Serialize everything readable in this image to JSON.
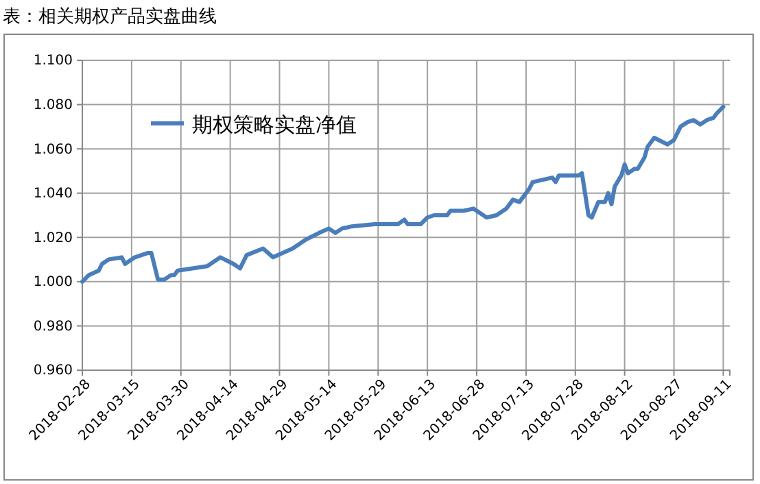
{
  "chart_data": {
    "type": "line",
    "title": "表：相关期权产品实盘曲线",
    "x": [
      "2018-02-28",
      "2018-03-02",
      "2018-03-05",
      "2018-03-06",
      "2018-03-08",
      "2018-03-12",
      "2018-03-13",
      "2018-03-16",
      "2018-03-20",
      "2018-03-21",
      "2018-03-23",
      "2018-03-25",
      "2018-03-27",
      "2018-03-28",
      "2018-03-29",
      "2018-04-07",
      "2018-04-11",
      "2018-04-15",
      "2018-04-17",
      "2018-04-19",
      "2018-04-24",
      "2018-04-27",
      "2018-05-03",
      "2018-05-07",
      "2018-05-11",
      "2018-05-14",
      "2018-05-16",
      "2018-05-18",
      "2018-05-21",
      "2018-05-28",
      "2018-06-04",
      "2018-06-06",
      "2018-06-07",
      "2018-06-11",
      "2018-06-13",
      "2018-06-15",
      "2018-06-19",
      "2018-06-20",
      "2018-06-24",
      "2018-06-27",
      "2018-06-29",
      "2018-07-01",
      "2018-07-04",
      "2018-07-07",
      "2018-07-09",
      "2018-07-11",
      "2018-07-14",
      "2018-07-15",
      "2018-07-21",
      "2018-07-22",
      "2018-07-23",
      "2018-07-29",
      "2018-07-30",
      "2018-08-01",
      "2018-08-02",
      "2018-08-04",
      "2018-08-06",
      "2018-08-07",
      "2018-08-08",
      "2018-08-09",
      "2018-08-11",
      "2018-08-12",
      "2018-08-13",
      "2018-08-15",
      "2018-08-16",
      "2018-08-18",
      "2018-08-19",
      "2018-08-21",
      "2018-08-25",
      "2018-08-27",
      "2018-08-29",
      "2018-08-31",
      "2018-09-02",
      "2018-09-04",
      "2018-09-06",
      "2018-09-08",
      "2018-09-09",
      "2018-09-11"
    ],
    "series": [
      {
        "name": "期权策略实盘净值",
        "color": "#4a7ebb",
        "values": [
          1.0,
          1.003,
          1.005,
          1.008,
          1.01,
          1.011,
          1.008,
          1.011,
          1.013,
          1.013,
          1.001,
          1.001,
          1.003,
          1.003,
          1.005,
          1.007,
          1.011,
          1.008,
          1.006,
          1.012,
          1.015,
          1.011,
          1.015,
          1.019,
          1.022,
          1.024,
          1.022,
          1.024,
          1.025,
          1.026,
          1.026,
          1.028,
          1.026,
          1.026,
          1.029,
          1.03,
          1.03,
          1.032,
          1.032,
          1.033,
          1.031,
          1.029,
          1.03,
          1.033,
          1.037,
          1.036,
          1.042,
          1.045,
          1.047,
          1.045,
          1.048,
          1.048,
          1.049,
          1.03,
          1.029,
          1.036,
          1.036,
          1.04,
          1.035,
          1.043,
          1.048,
          1.053,
          1.049,
          1.051,
          1.051,
          1.056,
          1.061,
          1.065,
          1.062,
          1.064,
          1.07,
          1.072,
          1.073,
          1.071,
          1.073,
          1.074,
          1.076,
          1.079
        ]
      }
    ],
    "xlim": [
      "2018-02-28",
      "2018-09-13"
    ],
    "xticks": [
      "2018-02-28",
      "2018-03-15",
      "2018-03-30",
      "2018-04-14",
      "2018-04-29",
      "2018-05-14",
      "2018-05-29",
      "2018-06-13",
      "2018-06-28",
      "2018-07-13",
      "2018-07-28",
      "2018-08-12",
      "2018-08-27",
      "2018-09-11"
    ],
    "ylim": [
      0.96,
      1.1
    ],
    "yticks": [
      {
        "value": 0.96,
        "label": "0.960"
      },
      {
        "value": 0.98,
        "label": "0.980"
      },
      {
        "value": 1.0,
        "label": "1.000"
      },
      {
        "value": 1.02,
        "label": "1.020"
      },
      {
        "value": 1.04,
        "label": "1.040"
      },
      {
        "value": 1.06,
        "label": "1.060"
      },
      {
        "value": 1.08,
        "label": "1.080"
      },
      {
        "value": 1.1,
        "label": "1.100"
      }
    ],
    "grid": true,
    "legend": "top left",
    "line_style": "solid",
    "marker": "none"
  }
}
